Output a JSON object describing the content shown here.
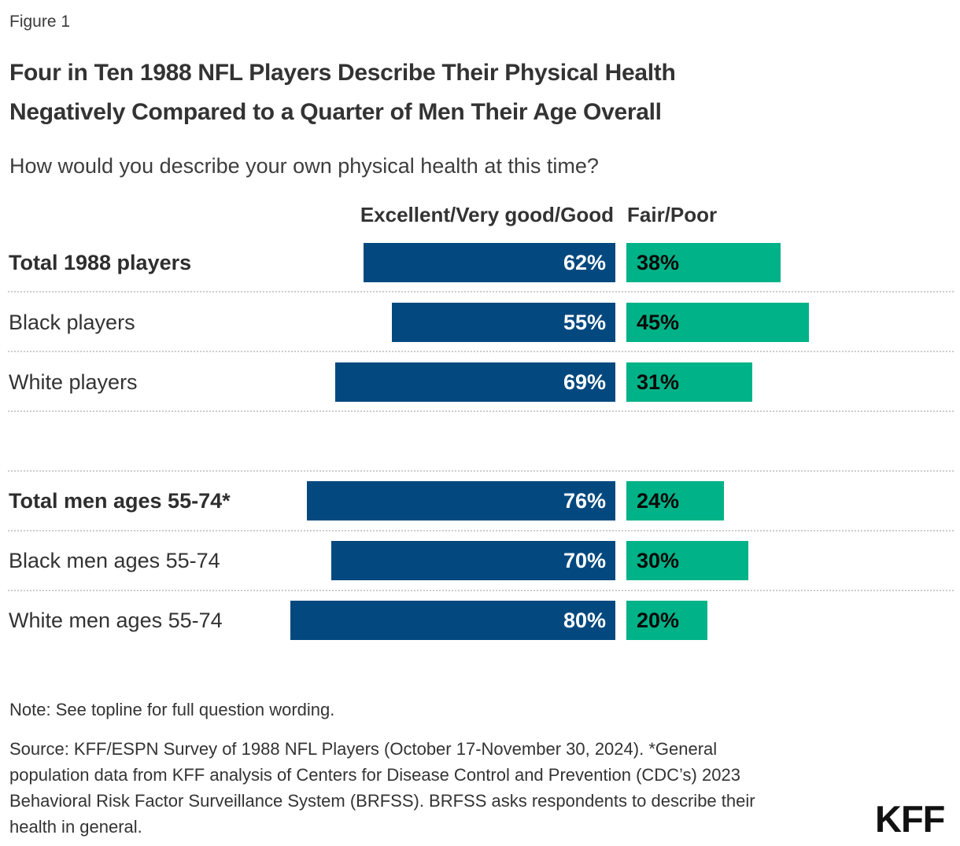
{
  "figure_label": "Figure 1",
  "title_lines": [
    "Four in Ten 1988 NFL Players Describe Their Physical Health",
    "Negatively Compared to a Quarter of Men Their Age Overall"
  ],
  "subtitle": "How would you describe your own physical health at this time?",
  "column_headers": {
    "excellent": "Excellent/Very good/Good",
    "fair": "Fair/Poor"
  },
  "colors": {
    "excellent_bar": "#03497f",
    "fair_bar": "#00b287",
    "text": "#333333",
    "separator": "#cccccc"
  },
  "chart_data": {
    "type": "bar",
    "orientation": "horizontal",
    "title": "How would you describe your own physical health at this time?",
    "series_names": [
      "Excellent/Very good/Good",
      "Fair/Poor"
    ],
    "xlim": [
      0,
      100
    ],
    "value_suffix": "%",
    "grid": "dotted row separators",
    "rows": [
      {
        "label": "Total 1988 players",
        "bold": true,
        "excellent": 62,
        "fair": 38,
        "excellent_label": "62%",
        "fair_label": "38%"
      },
      {
        "label": "Black players",
        "bold": false,
        "excellent": 55,
        "fair": 45,
        "excellent_label": "55%",
        "fair_label": "45%"
      },
      {
        "label": "White players",
        "bold": false,
        "excellent": 69,
        "fair": 31,
        "excellent_label": "69%",
        "fair_label": "31%"
      },
      {
        "label": "Total men ages 55-74*",
        "bold": true,
        "excellent": 76,
        "fair": 24,
        "excellent_label": "76%",
        "fair_label": "24%"
      },
      {
        "label": "Black men ages 55-74",
        "bold": false,
        "excellent": 70,
        "fair": 30,
        "excellent_label": "70%",
        "fair_label": "30%"
      },
      {
        "label": "White men ages 55-74",
        "bold": false,
        "excellent": 80,
        "fair": 20,
        "excellent_label": "80%",
        "fair_label": "20%"
      }
    ]
  },
  "note": "Note: See topline for full question wording.",
  "source": "Source: KFF/ESPN Survey of 1988 NFL Players (October 17-November 30, 2024). *General population data from KFF analysis of Centers for Disease Control and Prevention (CDC’s) 2023 Behavioral Risk Factor Surveillance System (BRFSS). BRFSS asks respondents to describe their health in general.",
  "logo_text": "KFF"
}
